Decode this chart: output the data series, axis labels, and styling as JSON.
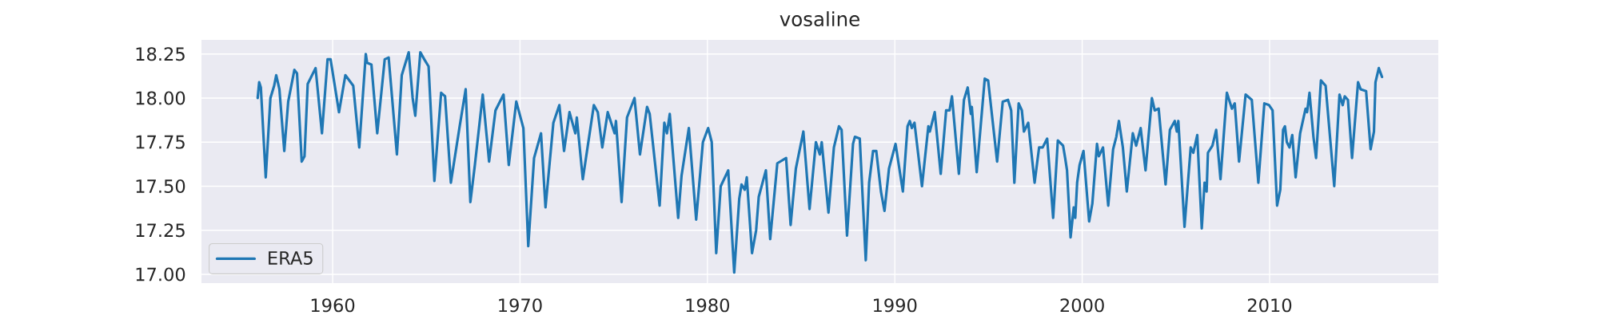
{
  "chart_data": {
    "type": "line",
    "title": "vosaline",
    "x": [
      1956.0,
      1956.08,
      1956.17,
      1956.43,
      1956.68,
      1956.88,
      1956.99,
      1957.16,
      1957.42,
      1957.63,
      1957.96,
      1958.1,
      1958.35,
      1958.5,
      1958.67,
      1959.09,
      1959.43,
      1959.73,
      1959.89,
      1960.34,
      1960.68,
      1961.1,
      1961.42,
      1961.77,
      1961.84,
      1962.07,
      1962.38,
      1962.78,
      1962.99,
      1963.43,
      1963.69,
      1964.06,
      1964.27,
      1964.41,
      1964.68,
      1964.89,
      1965.12,
      1965.43,
      1965.79,
      1966.0,
      1966.31,
      1966.78,
      1967.1,
      1967.35,
      1967.59,
      1968.01,
      1968.35,
      1968.69,
      1969.12,
      1969.4,
      1969.8,
      1970.18,
      1970.44,
      1970.75,
      1971.12,
      1971.36,
      1971.78,
      1972.1,
      1972.35,
      1972.64,
      1972.95,
      1973.03,
      1973.35,
      1973.94,
      1974.15,
      1974.39,
      1974.68,
      1975.05,
      1975.12,
      1975.42,
      1975.71,
      1976.11,
      1976.4,
      1976.78,
      1976.92,
      1977.45,
      1977.7,
      1977.84,
      1977.99,
      1978.44,
      1978.62,
      1979.01,
      1979.4,
      1979.76,
      1980.04,
      1980.23,
      1980.47,
      1980.71,
      1981.11,
      1981.43,
      1981.7,
      1981.82,
      1981.99,
      1982.1,
      1982.38,
      1982.6,
      1982.74,
      1983.12,
      1983.35,
      1983.73,
      1984.2,
      1984.44,
      1984.72,
      1985.12,
      1985.45,
      1985.79,
      1986.0,
      1986.1,
      1986.46,
      1986.75,
      1987.02,
      1987.16,
      1987.45,
      1987.77,
      1987.87,
      1988.13,
      1988.45,
      1988.63,
      1988.84,
      1989.01,
      1989.26,
      1989.45,
      1989.69,
      1990.04,
      1990.43,
      1990.68,
      1990.8,
      1990.91,
      1991.05,
      1991.45,
      1991.79,
      1991.87,
      1992.13,
      1992.45,
      1992.74,
      1992.92,
      1993.05,
      1993.42,
      1993.69,
      1993.89,
      1994.06,
      1994.11,
      1994.37,
      1994.8,
      1994.98,
      1995.46,
      1995.76,
      1996.04,
      1996.21,
      1996.38,
      1996.61,
      1996.78,
      1996.89,
      1997.12,
      1997.46,
      1997.7,
      1997.89,
      1998.13,
      1998.45,
      1998.7,
      1998.98,
      1999.09,
      1999.19,
      1999.38,
      1999.55,
      1999.63,
      1999.73,
      1999.86,
      2000.07,
      2000.37,
      2000.54,
      2000.79,
      2000.89,
      2001.11,
      2001.39,
      2001.65,
      2001.82,
      2001.96,
      2002.17,
      2002.38,
      2002.7,
      2002.88,
      2003.12,
      2003.38,
      2003.72,
      2003.87,
      2004.08,
      2004.45,
      2004.68,
      2004.94,
      2005.05,
      2005.13,
      2005.46,
      2005.79,
      2005.93,
      2006.14,
      2006.38,
      2006.53,
      2006.64,
      2006.71,
      2006.95,
      2007.15,
      2007.38,
      2007.72,
      2007.99,
      2008.14,
      2008.37,
      2008.72,
      2009.05,
      2009.4,
      2009.72,
      2009.97,
      2010.16,
      2010.4,
      2010.57,
      2010.72,
      2010.82,
      2010.92,
      2011.06,
      2011.21,
      2011.39,
      2011.63,
      2011.92,
      2012.0,
      2012.13,
      2012.34,
      2012.48,
      2012.74,
      2012.99,
      2013.45,
      2013.73,
      2013.9,
      2014.01,
      2014.18,
      2014.4,
      2014.72,
      2014.86,
      2015.15,
      2015.39,
      2015.57,
      2015.65,
      2015.83,
      2016.0
    ],
    "series": [
      {
        "name": "ERA5",
        "color": "#1f77b4",
        "values": [
          18.0,
          18.09,
          18.06,
          17.55,
          18.0,
          18.07,
          18.13,
          18.05,
          17.7,
          17.98,
          18.16,
          18.14,
          17.64,
          17.67,
          18.08,
          18.17,
          17.8,
          18.22,
          18.22,
          17.92,
          18.13,
          18.07,
          17.72,
          18.25,
          18.2,
          18.19,
          17.8,
          18.22,
          18.23,
          17.68,
          18.13,
          18.26,
          18.0,
          17.9,
          18.26,
          18.22,
          18.18,
          17.53,
          18.03,
          18.01,
          17.52,
          17.84,
          18.05,
          17.41,
          17.62,
          18.02,
          17.64,
          17.93,
          18.02,
          17.62,
          17.98,
          17.83,
          17.16,
          17.66,
          17.8,
          17.38,
          17.86,
          17.96,
          17.7,
          17.92,
          17.8,
          17.89,
          17.54,
          17.96,
          17.92,
          17.72,
          17.92,
          17.8,
          17.87,
          17.41,
          17.89,
          18.0,
          17.68,
          17.95,
          17.91,
          17.39,
          17.86,
          17.8,
          17.91,
          17.32,
          17.56,
          17.83,
          17.31,
          17.75,
          17.83,
          17.75,
          17.12,
          17.5,
          17.59,
          17.01,
          17.43,
          17.51,
          17.48,
          17.55,
          17.12,
          17.25,
          17.44,
          17.59,
          17.2,
          17.63,
          17.66,
          17.28,
          17.6,
          17.81,
          17.37,
          17.75,
          17.68,
          17.75,
          17.35,
          17.72,
          17.84,
          17.82,
          17.22,
          17.74,
          17.78,
          17.77,
          17.08,
          17.52,
          17.7,
          17.7,
          17.47,
          17.36,
          17.6,
          17.74,
          17.47,
          17.84,
          17.87,
          17.83,
          17.86,
          17.5,
          17.84,
          17.81,
          17.92,
          17.57,
          17.93,
          17.93,
          18.01,
          17.57,
          17.99,
          18.06,
          17.91,
          17.95,
          17.58,
          18.11,
          18.1,
          17.64,
          17.98,
          17.99,
          17.93,
          17.52,
          17.97,
          17.93,
          17.81,
          17.86,
          17.52,
          17.72,
          17.72,
          17.77,
          17.32,
          17.76,
          17.73,
          17.66,
          17.59,
          17.21,
          17.38,
          17.32,
          17.52,
          17.62,
          17.7,
          17.3,
          17.4,
          17.74,
          17.67,
          17.72,
          17.39,
          17.71,
          17.78,
          17.87,
          17.72,
          17.47,
          17.8,
          17.73,
          17.83,
          17.59,
          18.0,
          17.93,
          17.94,
          17.51,
          17.82,
          17.87,
          17.81,
          17.87,
          17.27,
          17.72,
          17.69,
          17.79,
          17.26,
          17.52,
          17.47,
          17.69,
          17.73,
          17.82,
          17.54,
          18.03,
          17.94,
          17.97,
          17.64,
          18.02,
          17.99,
          17.52,
          17.97,
          17.96,
          17.93,
          17.39,
          17.48,
          17.82,
          17.84,
          17.75,
          17.72,
          17.79,
          17.55,
          17.8,
          17.94,
          17.92,
          18.03,
          17.78,
          17.66,
          18.1,
          18.07,
          17.5,
          18.02,
          17.96,
          18.01,
          17.99,
          17.66,
          18.09,
          18.05,
          18.04,
          17.71,
          17.81,
          18.09,
          18.17,
          18.12
        ]
      }
    ],
    "xlim": [
      1953,
      2019
    ],
    "ylim": [
      16.95,
      18.33
    ],
    "xticks": [
      1960,
      1970,
      1980,
      1990,
      2000,
      2010
    ],
    "yticks": [
      {
        "value": 17.0,
        "label": "17.00"
      },
      17.25,
      {
        "value": 17.5,
        "label": "17.50"
      },
      17.75,
      {
        "value": 18.0,
        "label": "18.00"
      },
      18.25
    ],
    "grid": true,
    "legend": "bottom left"
  }
}
